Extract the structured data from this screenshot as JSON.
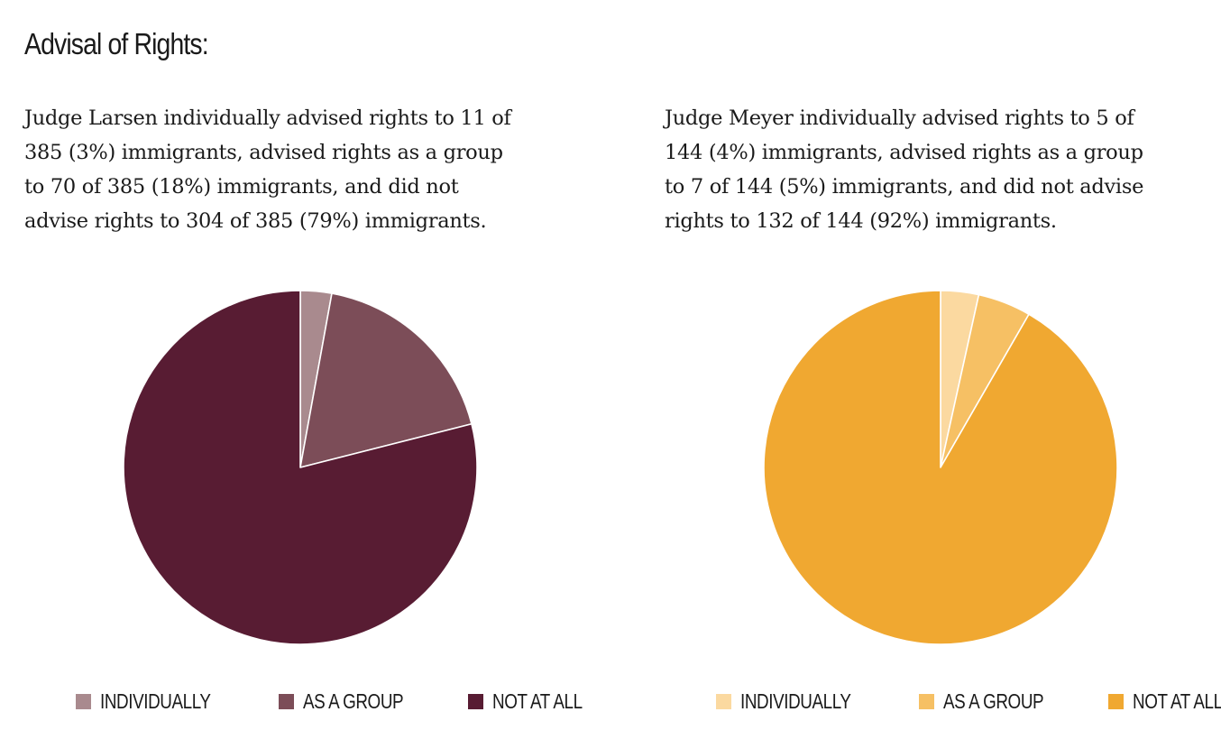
{
  "heading": "Advisal of Rights:",
  "chart_data": [
    {
      "type": "pie",
      "description_lines": [
        "Judge Larsen individually advised rights to 11 of",
        "385 (3%) immigrants, advised rights as a group",
        "to 70 of 385 (18%) immigrants, and did not",
        "advise rights to 304 of 385 (79%) immigrants."
      ],
      "categories": [
        "INDIVIDUALLY",
        "AS A GROUP",
        "NOT AT ALL"
      ],
      "values": [
        11,
        70,
        304
      ],
      "colors": [
        "#a98a8e",
        "#7c4d58",
        "#581c33"
      ]
    },
    {
      "type": "pie",
      "description_lines": [
        "Judge Meyer individually advised rights to 5 of",
        "144 (4%) immigrants, advised rights as a group",
        "to 7 of 144 (5%) immigrants, and did not advise",
        "rights to 132 of 144 (92%) immigrants."
      ],
      "categories": [
        "INDIVIDUALLY",
        "AS A GROUP",
        "NOT AT ALL"
      ],
      "values": [
        5,
        7,
        132
      ],
      "colors": [
        "#fbd9a0",
        "#f6c064",
        "#f0a831"
      ]
    }
  ]
}
